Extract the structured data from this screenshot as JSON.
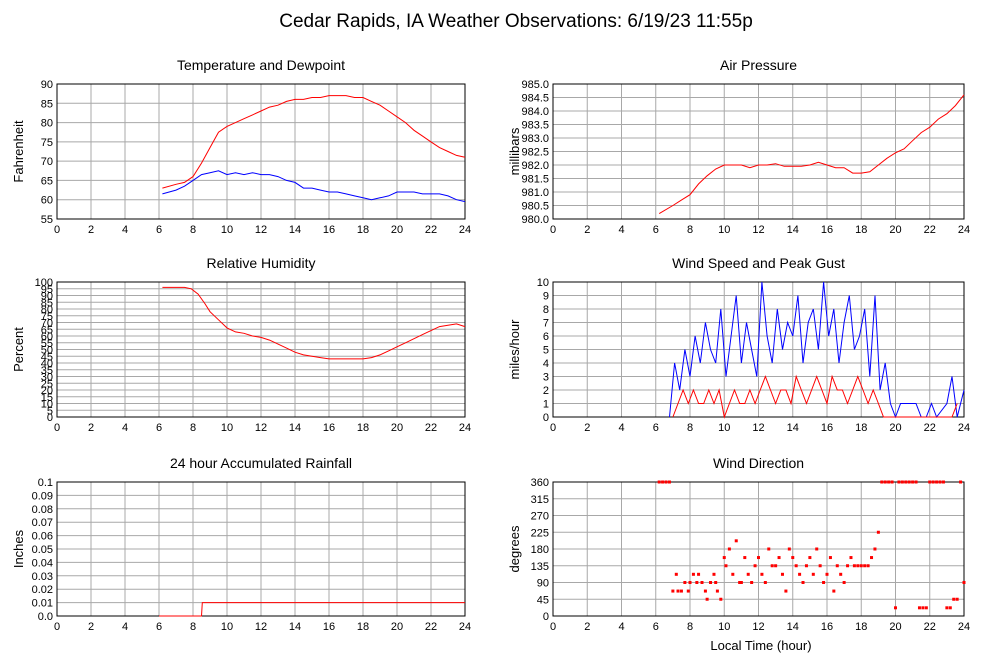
{
  "title": "Cedar Rapids, IA Weather Observations: 6/19/23 11:55p",
  "xlabel": "Local Time (hour)",
  "chart_data": [
    {
      "id": "temp",
      "type": "line",
      "title": "Temperature and Dewpoint",
      "ylabel": "Fahrenheit",
      "xlim": [
        0,
        24
      ],
      "ylim": [
        55,
        90
      ],
      "xticks": [
        "0",
        "2",
        "4",
        "6",
        "8",
        "10",
        "12",
        "14",
        "16",
        "18",
        "20",
        "22",
        "24"
      ],
      "yticks": [
        "55",
        "60",
        "65",
        "70",
        "75",
        "80",
        "85",
        "90"
      ],
      "grid": true,
      "series": [
        {
          "color": "#ff0000",
          "x": [
            6.2,
            7,
            7.5,
            8,
            8.5,
            9,
            9.5,
            10,
            10.5,
            11,
            11.5,
            12,
            12.5,
            13,
            13.5,
            14,
            14.5,
            15,
            15.5,
            16,
            16.5,
            17,
            17.5,
            18,
            18.5,
            19,
            19.5,
            20,
            20.5,
            21,
            21.5,
            22,
            22.5,
            23,
            23.5,
            24
          ],
          "y": [
            63,
            64,
            64.5,
            66,
            69.5,
            73.5,
            77.5,
            79,
            80,
            81,
            82,
            83,
            84,
            84.5,
            85.5,
            86,
            86,
            86.5,
            86.5,
            87,
            87,
            87,
            86.5,
            86.5,
            85.5,
            84.5,
            83,
            81.5,
            80,
            78,
            76.5,
            75,
            73.5,
            72.5,
            71.5,
            71
          ]
        },
        {
          "color": "#0000ff",
          "x": [
            6.2,
            7,
            7.5,
            8,
            8.5,
            9,
            9.5,
            10,
            10.5,
            11,
            11.5,
            12,
            12.5,
            13,
            13.5,
            14,
            14.5,
            15,
            15.5,
            16,
            16.5,
            17,
            17.5,
            18,
            18.5,
            19,
            19.5,
            20,
            20.5,
            21,
            21.5,
            22,
            22.5,
            23,
            23.5,
            24
          ],
          "y": [
            61.5,
            62.5,
            63.5,
            65,
            66.5,
            67,
            67.5,
            66.5,
            67,
            66.5,
            67,
            66.5,
            66.5,
            66,
            65,
            64.5,
            63,
            63,
            62.5,
            62,
            62,
            61.5,
            61,
            60.5,
            60,
            60.5,
            61,
            62,
            62,
            62,
            61.5,
            61.5,
            61.5,
            61,
            60,
            59.5
          ]
        }
      ]
    },
    {
      "id": "pressure",
      "type": "line",
      "title": "Air Pressure",
      "ylabel": "millibars",
      "xlim": [
        0,
        24
      ],
      "ylim": [
        980.0,
        985.0
      ],
      "xticks": [
        "0",
        "2",
        "4",
        "6",
        "8",
        "10",
        "12",
        "14",
        "16",
        "18",
        "20",
        "22",
        "24"
      ],
      "yticks": [
        "980.0",
        "980.5",
        "981.0",
        "981.5",
        "982.0",
        "982.5",
        "983.0",
        "983.5",
        "984.0",
        "984.5",
        "985.0"
      ],
      "grid": true,
      "series": [
        {
          "color": "#ff0000",
          "x": [
            6.2,
            7,
            7.5,
            8,
            8.5,
            9,
            9.5,
            10,
            10.5,
            11,
            11.5,
            12,
            12.5,
            13,
            13.5,
            14,
            14.5,
            15,
            15.5,
            16,
            16.5,
            17,
            17.5,
            18,
            18.5,
            19,
            19.5,
            20,
            20.5,
            21,
            21.5,
            22,
            22.5,
            23,
            23.5,
            24
          ],
          "y": [
            980.2,
            980.5,
            980.7,
            980.9,
            981.3,
            981.6,
            981.85,
            982.0,
            982.0,
            982.0,
            981.9,
            982.0,
            982.0,
            982.05,
            981.95,
            981.95,
            981.95,
            982.0,
            982.1,
            982.0,
            981.9,
            981.9,
            981.7,
            981.7,
            981.75,
            982.0,
            982.25,
            982.45,
            982.6,
            982.9,
            983.2,
            983.4,
            983.7,
            983.9,
            984.2,
            984.6
          ]
        }
      ]
    },
    {
      "id": "humidity",
      "type": "line",
      "title": "Relative Humidity",
      "ylabel": "Percent",
      "xlim": [
        0,
        24
      ],
      "ylim": [
        0,
        100
      ],
      "xticks": [
        "0",
        "2",
        "4",
        "6",
        "8",
        "10",
        "12",
        "14",
        "16",
        "18",
        "20",
        "22",
        "24"
      ],
      "yticks": [
        "0",
        "5",
        "10",
        "15",
        "20",
        "25",
        "30",
        "35",
        "40",
        "45",
        "50",
        "55",
        "60",
        "65",
        "70",
        "75",
        "80",
        "85",
        "90",
        "95",
        "100"
      ],
      "grid": true,
      "series": [
        {
          "color": "#ff0000",
          "x": [
            6.2,
            7,
            7.5,
            7.9,
            8.3,
            8.7,
            9,
            9.5,
            10,
            10.5,
            11,
            11.5,
            12,
            12.5,
            13,
            13.5,
            14,
            14.5,
            15,
            15.5,
            16,
            16.5,
            17,
            17.5,
            18,
            18.5,
            19,
            19.5,
            20,
            20.5,
            21,
            21.5,
            22,
            22.5,
            23,
            23.5,
            24
          ],
          "y": [
            96,
            96,
            96,
            95,
            91,
            84,
            78,
            72,
            66,
            63,
            62,
            60,
            59,
            57,
            54,
            51,
            48,
            46,
            45,
            44,
            43,
            43,
            43,
            43,
            43,
            44,
            46,
            49,
            52,
            55,
            58,
            61,
            64,
            67,
            68,
            69,
            67
          ]
        }
      ]
    },
    {
      "id": "wind",
      "type": "line",
      "title": "Wind Speed and Peak Gust",
      "ylabel": "miles/hour",
      "xlim": [
        0,
        24
      ],
      "ylim": [
        0,
        10
      ],
      "xticks": [
        "0",
        "2",
        "4",
        "6",
        "8",
        "10",
        "12",
        "14",
        "16",
        "18",
        "20",
        "22",
        "24"
      ],
      "yticks": [
        "0",
        "1",
        "2",
        "3",
        "4",
        "5",
        "6",
        "7",
        "8",
        "9",
        "10"
      ],
      "grid": true,
      "series": [
        {
          "color": "#0000ff",
          "x": [
            6.8,
            7.1,
            7.4,
            7.7,
            8.0,
            8.3,
            8.6,
            8.9,
            9.2,
            9.5,
            9.8,
            10.1,
            10.4,
            10.7,
            11.0,
            11.3,
            11.6,
            11.9,
            12.2,
            12.5,
            12.8,
            13.1,
            13.4,
            13.7,
            14.0,
            14.3,
            14.6,
            14.9,
            15.2,
            15.5,
            15.8,
            16.1,
            16.4,
            16.7,
            17.0,
            17.3,
            17.6,
            17.9,
            18.2,
            18.5,
            18.8,
            19.1,
            19.4,
            19.7,
            20.0,
            20.3,
            21.2,
            21.5,
            21.8,
            22.1,
            22.4,
            23.0,
            23.3,
            23.6,
            24.0
          ],
          "y": [
            0,
            4,
            2,
            5,
            3,
            6,
            4,
            7,
            5,
            4,
            8,
            3,
            6,
            9,
            4,
            7,
            5,
            3,
            10,
            6,
            4,
            8,
            5,
            7,
            6,
            9,
            4,
            7,
            8,
            5,
            10,
            6,
            8,
            4,
            7,
            9,
            5,
            6,
            8,
            3,
            9,
            2,
            4,
            1,
            0,
            1,
            1,
            0,
            0,
            1,
            0,
            1,
            3,
            0,
            2
          ]
        },
        {
          "color": "#ff0000",
          "x": [
            7.0,
            7.3,
            7.6,
            7.9,
            8.2,
            8.5,
            8.8,
            9.1,
            9.4,
            9.7,
            10.0,
            10.3,
            10.6,
            10.9,
            11.2,
            11.5,
            11.8,
            12.1,
            12.4,
            12.7,
            13.0,
            13.3,
            13.6,
            13.9,
            14.2,
            14.5,
            14.8,
            15.1,
            15.4,
            15.7,
            16.0,
            16.3,
            16.6,
            16.9,
            17.2,
            17.5,
            17.8,
            18.1,
            18.4,
            18.7,
            19.0,
            19.3,
            23.3,
            23.6
          ],
          "y": [
            0,
            1,
            2,
            1,
            2,
            1,
            1,
            2,
            1,
            2,
            0,
            1,
            2,
            1,
            1,
            2,
            1,
            2,
            3,
            2,
            1,
            2,
            2,
            1,
            3,
            2,
            1,
            2,
            3,
            2,
            1,
            3,
            2,
            2,
            1,
            2,
            3,
            2,
            1,
            2,
            1,
            0,
            0,
            1
          ]
        }
      ]
    },
    {
      "id": "rain",
      "type": "line",
      "title": "24 hour Accumulated Rainfall",
      "ylabel": "Inches",
      "xlim": [
        0,
        24
      ],
      "ylim": [
        0,
        0.1
      ],
      "xticks": [
        "0",
        "2",
        "4",
        "6",
        "8",
        "10",
        "12",
        "14",
        "16",
        "18",
        "20",
        "22",
        "24"
      ],
      "yticks": [
        "0.0",
        "0.01",
        "0.02",
        "0.03",
        "0.04",
        "0.05",
        "0.06",
        "0.07",
        "0.08",
        "0.09",
        "0.1"
      ],
      "grid": true,
      "series": [
        {
          "color": "#ff0000",
          "x": [
            6.0,
            8.5,
            8.55,
            24.0
          ],
          "y": [
            0,
            0,
            0.01,
            0.01
          ]
        }
      ]
    },
    {
      "id": "direction",
      "type": "scatter",
      "title": "Wind Direction",
      "ylabel": "degrees",
      "xlim": [
        0,
        24
      ],
      "ylim": [
        0,
        360
      ],
      "xticks": [
        "0",
        "2",
        "4",
        "6",
        "8",
        "10",
        "12",
        "14",
        "16",
        "18",
        "20",
        "22",
        "24"
      ],
      "yticks": [
        "0",
        "45",
        "90",
        "135",
        "180",
        "225",
        "270",
        "315",
        "360"
      ],
      "grid": true,
      "series": [
        {
          "color": "#ff0000",
          "x": [
            6.2,
            6.4,
            6.6,
            6.8,
            7.0,
            7.2,
            7.3,
            7.5,
            7.7,
            7.9,
            8.0,
            8.2,
            8.4,
            8.5,
            8.7,
            8.9,
            9.0,
            9.2,
            9.4,
            9.5,
            9.6,
            9.8,
            10.0,
            10.1,
            10.3,
            10.5,
            10.7,
            10.9,
            11.0,
            11.2,
            11.4,
            11.6,
            11.8,
            12.0,
            12.2,
            12.4,
            12.6,
            12.8,
            13.0,
            13.2,
            13.4,
            13.6,
            13.8,
            14.0,
            14.2,
            14.4,
            14.6,
            14.8,
            15.0,
            15.2,
            15.4,
            15.6,
            15.8,
            16.0,
            16.2,
            16.4,
            16.6,
            16.8,
            17.0,
            17.2,
            17.4,
            17.6,
            17.8,
            18.0,
            18.2,
            18.4,
            18.6,
            18.8,
            19.0,
            19.2,
            19.4,
            19.6,
            19.8,
            20.0,
            20.2,
            20.4,
            20.6,
            20.8,
            21.0,
            21.2,
            21.4,
            21.6,
            21.8,
            22.0,
            22.2,
            22.4,
            22.6,
            22.8,
            23.0,
            23.2,
            23.4,
            23.6,
            23.8,
            24.0
          ],
          "y": [
            360,
            360,
            360,
            360,
            67,
            112,
            67,
            67,
            90,
            67,
            90,
            112,
            90,
            112,
            90,
            67,
            45,
            90,
            112,
            90,
            67,
            45,
            157,
            135,
            180,
            112,
            202,
            90,
            90,
            157,
            112,
            90,
            135,
            157,
            112,
            90,
            180,
            135,
            135,
            157,
            112,
            67,
            180,
            157,
            135,
            112,
            90,
            135,
            157,
            112,
            180,
            135,
            90,
            112,
            157,
            67,
            135,
            112,
            90,
            135,
            157,
            135,
            135,
            135,
            135,
            135,
            157,
            180,
            225,
            360,
            360,
            360,
            360,
            22,
            360,
            360,
            360,
            360,
            360,
            360,
            22,
            22,
            22,
            360,
            360,
            360,
            360,
            360,
            22,
            22,
            45,
            45,
            360,
            90
          ]
        }
      ]
    }
  ]
}
